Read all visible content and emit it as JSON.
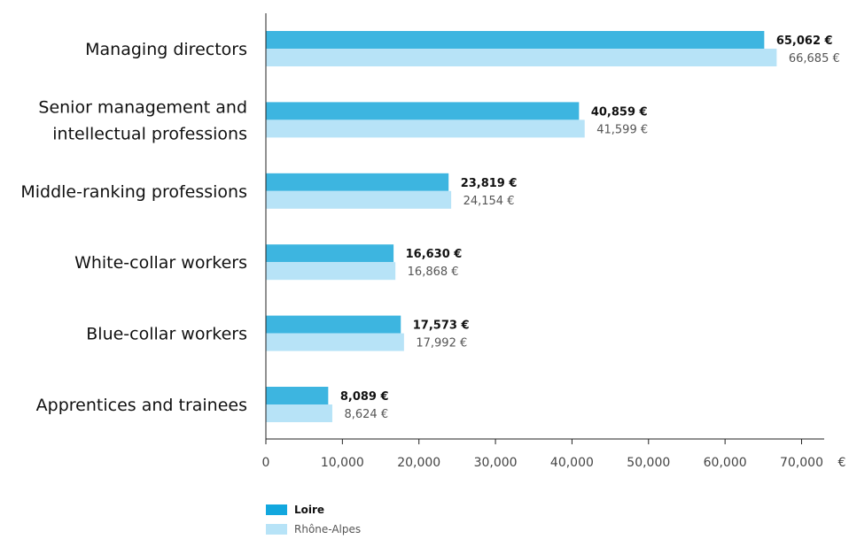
{
  "chart_data": {
    "type": "bar",
    "orientation": "horizontal",
    "categories": [
      "Managing directors",
      "Senior management and intellectual professions",
      "Middle-ranking professions",
      "White-collar workers",
      "Blue-collar workers",
      "Apprentices and trainees"
    ],
    "category_lines": [
      [
        "Managing directors"
      ],
      [
        "Senior management and",
        "intellectual professions"
      ],
      [
        "Middle-ranking professions"
      ],
      [
        "White-collar workers"
      ],
      [
        "Blue-collar workers"
      ],
      [
        "Apprentices and trainees"
      ]
    ],
    "series": [
      {
        "name": "Loire",
        "color": "#3db5e0",
        "values": [
          65062,
          40859,
          23819,
          16630,
          17573,
          8089
        ],
        "labels": [
          "65,062 €",
          "40,859 €",
          "23,819 €",
          "16,630 €",
          "17,573 €",
          "8,089 €"
        ]
      },
      {
        "name": "Rhône-Alpes",
        "color": "#b7e3f7",
        "values": [
          66685,
          41599,
          24154,
          16868,
          17992,
          8624
        ],
        "labels": [
          "66,685 €",
          "41,599 €",
          "24,154 €",
          "16,868 €",
          "17,992 €",
          "8,624 €"
        ]
      }
    ],
    "xlim": [
      0,
      70000
    ],
    "xticks": [
      0,
      10000,
      20000,
      30000,
      40000,
      50000,
      60000,
      70000
    ],
    "xtick_labels": [
      "0",
      "10,000",
      "20,000",
      "30,000",
      "40,000",
      "50,000",
      "60,000",
      "70,000"
    ],
    "x_unit": "€",
    "grid": false,
    "legend_position": "bottom-left"
  },
  "legend": {
    "items": [
      {
        "label": "Loire",
        "color": "#3db5e0"
      },
      {
        "label": "Rhône-Alpes",
        "color": "#b7e3f7"
      }
    ]
  }
}
